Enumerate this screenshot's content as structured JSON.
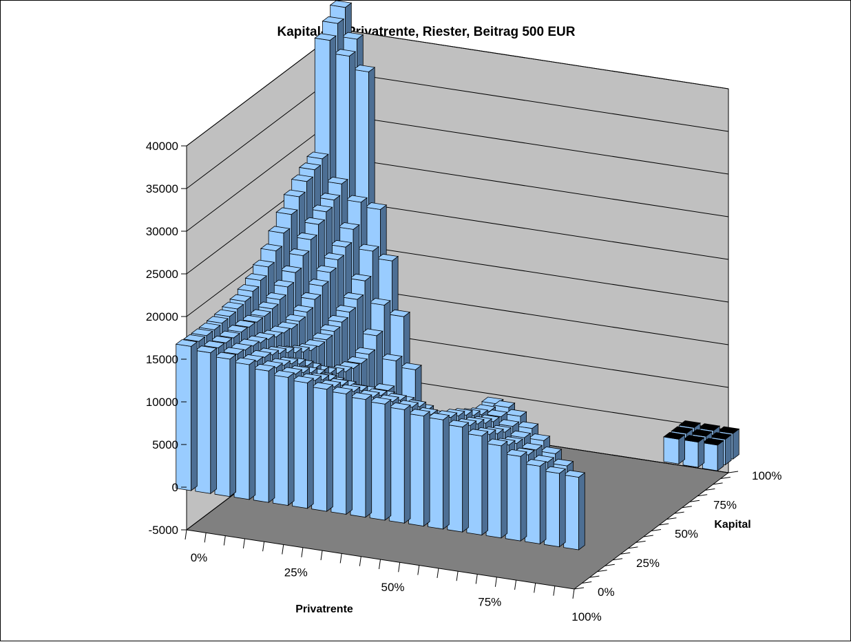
{
  "chart_data": {
    "type": "bar3d",
    "title": "Kapital-LV, Privatrente, Riester, Beitrag 500 EUR",
    "x_axis_title": "Privatrente",
    "y_axis_title": "Kapital",
    "z_axis_ticks": [
      "-5000",
      "0",
      "5000",
      "10000",
      "15000",
      "20000",
      "25000",
      "30000",
      "35000",
      "40000"
    ],
    "x_axis_ticks": [
      "0%",
      "25%",
      "50%",
      "75%",
      "100%"
    ],
    "y_axis_ticks": [
      "0%",
      "25%",
      "50%",
      "75%",
      "100%"
    ],
    "zlim": [
      -5000,
      40000
    ],
    "x_grid": [
      0,
      5,
      10,
      15,
      20,
      25,
      30,
      35,
      40,
      45,
      50,
      55,
      60,
      65,
      70,
      75,
      80,
      85,
      90,
      95,
      100
    ],
    "y_grid": [
      0,
      5,
      10,
      15,
      20,
      25,
      30,
      35,
      40,
      45,
      50,
      55,
      60,
      65,
      70,
      75,
      80,
      85,
      90,
      95,
      100
    ],
    "value_model": "Values are read from the plotted bars and interpolated smoothly between the visible key points; only cells with Privatrente% + Kapital% ≤ 100% are shown.",
    "key_values": [
      {
        "privatrente": 0,
        "kapital": 0,
        "value": 17000
      },
      {
        "privatrente": 100,
        "kapital": 0,
        "value": 11000
      },
      {
        "privatrente": 0,
        "kapital": 100,
        "value": 43000
      },
      {
        "privatrente": 0,
        "kapital": 75,
        "value": 29000
      },
      {
        "privatrente": 0,
        "kapital": 50,
        "value": 17000
      },
      {
        "privatrente": 0,
        "kapital": 25,
        "value": 11500
      },
      {
        "privatrente": 0,
        "kapital": 5,
        "value": 15000
      },
      {
        "privatrente": 100,
        "kapital": 100,
        "value": -3000
      },
      {
        "privatrente": 25,
        "kapital": 75,
        "value": 1000
      },
      {
        "privatrente": 75,
        "kapital": 25,
        "value": 5000
      },
      {
        "privatrente": 50,
        "kapital": 50,
        "value": 15000
      }
    ],
    "bar_color": "#99ccff",
    "negative_color": "#000000",
    "wall_color": "#c0c0c0",
    "floor_color": "#808080"
  }
}
